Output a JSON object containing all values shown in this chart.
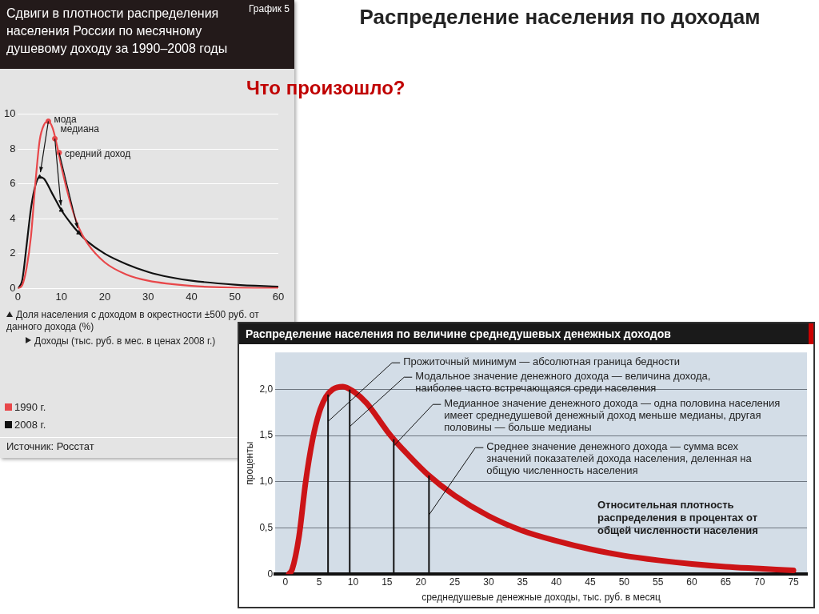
{
  "chart_data": [
    {
      "type": "line",
      "title": "Сдвиги в плотности распределения населения России по месячному душевому доходу за 1990–2008 годы",
      "subtitle": "График 5",
      "ylabel": "Доля населения с доходом в окрестности ±500 руб. от данного дохода (%)",
      "xlabel": "Доходы (тыс. руб. в мес. в ценах 2008 г.)",
      "xlim": [
        0,
        60
      ],
      "xticks": [
        0,
        10,
        20,
        30,
        40,
        50,
        60
      ],
      "ylim": [
        0,
        10
      ],
      "yticks": [
        0,
        2,
        4,
        6,
        8,
        10
      ],
      "grid": "y",
      "legend": "bottom",
      "marker": "none",
      "line_style": "solid",
      "series": [
        {
          "name": "1990 г.",
          "color": "#e8474a",
          "x": [
            0,
            1,
            2,
            3,
            4,
            5,
            6,
            7,
            8,
            9,
            10,
            12,
            14,
            16,
            20,
            25,
            30,
            40,
            50,
            60
          ],
          "values": [
            0,
            0.2,
            1.2,
            3,
            6,
            8.5,
            9.4,
            9.6,
            9.2,
            8.2,
            7,
            5,
            3.5,
            2.6,
            1.5,
            0.8,
            0.45,
            0.15,
            0.05,
            0.02
          ]
        },
        {
          "name": "2008 г.",
          "color": "#111111",
          "x": [
            0,
            1,
            2,
            3,
            4,
            5,
            6,
            8,
            10,
            12,
            14,
            16,
            20,
            25,
            30,
            35,
            40,
            50,
            60
          ],
          "values": [
            0,
            0.5,
            2.5,
            4.6,
            5.9,
            6.4,
            6.3,
            5.4,
            4.5,
            3.8,
            3.2,
            2.7,
            2,
            1.4,
            0.95,
            0.65,
            0.45,
            0.22,
            0.1
          ]
        },
        {
          "type": "scatter",
          "color": "#e8474a",
          "marker": "circle",
          "x": [
            7,
            8.5,
            9.5
          ],
          "values": [
            9.6,
            8.6,
            7.8
          ]
        },
        {
          "type": "scatter",
          "color": "#111111",
          "marker": "triangle",
          "x": [
            5,
            10,
            14
          ],
          "values": [
            6.4,
            4.5,
            3.2
          ]
        }
      ],
      "annotations": [
        {
          "text": "мода",
          "x": 7,
          "y": 9.6
        },
        {
          "text": "медиана",
          "x": 8.5,
          "y": 8.6
        },
        {
          "text": "средний доход",
          "x": 9.5,
          "y": 7.8
        },
        "Источник: Росстат"
      ]
    },
    {
      "type": "other",
      "title": "Распределение населения по доходам",
      "subtitle": "Что произошло?"
    },
    {
      "type": "line",
      "title": "Распределение населения по величине среднедушевых денежных доходов",
      "xlabel": "среднедушевые денежные доходы, тыс. руб. в месяц",
      "ylabel": "проценты",
      "xlim": [
        -1.5,
        77
      ],
      "xticks": [
        0,
        5,
        10,
        15,
        20,
        25,
        30,
        35,
        40,
        45,
        50,
        55,
        60,
        65,
        70,
        75
      ],
      "ylim": [
        0,
        2.4
      ],
      "yticks": [
        0,
        {
          "value": 0.5,
          "label": "0,5"
        },
        {
          "value": 1,
          "label": "1,0"
        },
        {
          "value": 1.5,
          "label": "1,5"
        },
        {
          "value": 2,
          "label": "2,0"
        }
      ],
      "grid": "y",
      "marker": "none",
      "line_style": "solid",
      "color": "#cc1417",
      "x": [
        0.5,
        1,
        2,
        3,
        4,
        5,
        6,
        7,
        8.5,
        10,
        12,
        15,
        16,
        18,
        21,
        25,
        30,
        35,
        40,
        45,
        50,
        55,
        60,
        65,
        70,
        75
      ],
      "values": [
        0,
        0.05,
        0.4,
        1,
        1.45,
        1.75,
        1.92,
        2,
        2.03,
        1.98,
        1.85,
        1.55,
        1.46,
        1.3,
        1.08,
        0.85,
        0.63,
        0.47,
        0.36,
        0.27,
        0.2,
        0.15,
        0.11,
        0.08,
        0.06,
        0.04
      ],
      "ref_lines": [
        {
          "axis": "x",
          "value": 6.3,
          "color": "#111111",
          "label": "Прожиточный минимум — абсолютная граница бедности"
        },
        {
          "axis": "x",
          "value": 9.5,
          "color": "#111111",
          "label": "Модальное значение денежного дохода — величина дохода, наиболее часто встречающаяся среди населения"
        },
        {
          "axis": "x",
          "value": 16,
          "color": "#111111",
          "label": "Медианное значение денежного дохода — одна половина населения имеет среднедушевой денежный доход меньше медианы, другая половины — больше медианы"
        },
        {
          "axis": "x",
          "value": 21.2,
          "color": "#111111",
          "label": "Среднее значение денежного дохода — сумма всех значений показателей дохода населения, деленная на общую численность населения"
        }
      ],
      "annotations": [
        "Относительная плотность распределения в процентах от общей численности населения"
      ]
    }
  ]
}
